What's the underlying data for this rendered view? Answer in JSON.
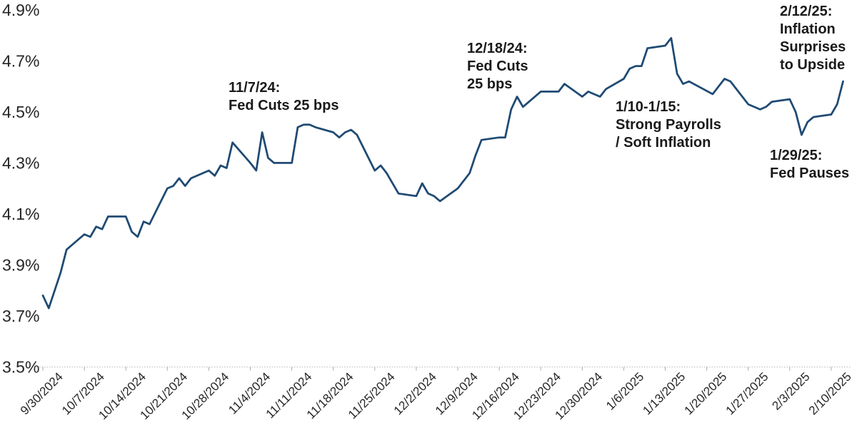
{
  "chart_data": {
    "type": "line",
    "title": "",
    "background": "#ffffff",
    "line_color": "#1f4a73",
    "axis_color": "#cccccc",
    "tick_color": "#aaaaaa",
    "text_color": "#262626",
    "annotation_color": "#1a1a1a",
    "grid": false,
    "legend": false,
    "ylim": [
      3.5,
      4.9
    ],
    "y_ticks": [
      {
        "label": "4.9%",
        "value": 4.9
      },
      {
        "label": "4.7%",
        "value": 4.7
      },
      {
        "label": "4.5%",
        "value": 4.5
      },
      {
        "label": "4.3%",
        "value": 4.3
      },
      {
        "label": "4.1%",
        "value": 4.1
      },
      {
        "label": "3.9%",
        "value": 3.9
      },
      {
        "label": "3.7%",
        "value": 3.7
      },
      {
        "label": "3.5%",
        "value": 3.5
      }
    ],
    "x_range": [
      "9/30/2024",
      "2/12/2025"
    ],
    "x_ticks": [
      "9/30/2024",
      "10/7/2024",
      "10/14/2024",
      "10/21/2024",
      "10/28/2024",
      "11/4/2024",
      "11/11/2024",
      "11/18/2024",
      "11/25/2024",
      "12/2/2024",
      "12/9/2024",
      "12/16/2024",
      "12/23/2024",
      "12/30/2024",
      "1/6/2025",
      "1/13/2025",
      "1/20/2025",
      "1/27/2025",
      "2/3/2025",
      "2/10/2025"
    ],
    "dates": [
      "9/30/2024",
      "10/1/2024",
      "10/2/2024",
      "10/3/2024",
      "10/4/2024",
      "10/7/2024",
      "10/8/2024",
      "10/9/2024",
      "10/10/2024",
      "10/11/2024",
      "10/14/2024",
      "10/15/2024",
      "10/16/2024",
      "10/17/2024",
      "10/18/2024",
      "10/21/2024",
      "10/22/2024",
      "10/23/2024",
      "10/24/2024",
      "10/25/2024",
      "10/28/2024",
      "10/29/2024",
      "10/30/2024",
      "10/31/2024",
      "11/1/2024",
      "11/4/2024",
      "11/5/2024",
      "11/6/2024",
      "11/7/2024",
      "11/8/2024",
      "11/11/2024",
      "11/12/2024",
      "11/13/2024",
      "11/14/2024",
      "11/15/2024",
      "11/18/2024",
      "11/19/2024",
      "11/20/2024",
      "11/21/2024",
      "11/22/2024",
      "11/25/2024",
      "11/26/2024",
      "11/27/2024",
      "11/29/2024",
      "12/2/2024",
      "12/3/2024",
      "12/4/2024",
      "12/5/2024",
      "12/6/2024",
      "12/9/2024",
      "12/10/2024",
      "12/11/2024",
      "12/12/2024",
      "12/13/2024",
      "12/16/2024",
      "12/17/2024",
      "12/18/2024",
      "12/19/2024",
      "12/20/2024",
      "12/23/2024",
      "12/24/2024",
      "12/26/2024",
      "12/27/2024",
      "12/30/2024",
      "12/31/2024",
      "1/2/2025",
      "1/3/2025",
      "1/6/2025",
      "1/7/2025",
      "1/8/2025",
      "1/9/2025",
      "1/10/2025",
      "1/13/2025",
      "1/14/2025",
      "1/15/2025",
      "1/16/2025",
      "1/17/2025",
      "1/21/2025",
      "1/22/2025",
      "1/23/2025",
      "1/24/2025",
      "1/27/2025",
      "1/28/2025",
      "1/29/2025",
      "1/30/2025",
      "1/31/2025",
      "2/3/2025",
      "2/4/2025",
      "2/5/2025",
      "2/6/2025",
      "2/7/2025",
      "2/10/2025",
      "2/11/2025",
      "2/12/2025"
    ],
    "values": [
      3.78,
      3.73,
      3.8,
      3.87,
      3.96,
      4.02,
      4.01,
      4.05,
      4.04,
      4.09,
      4.09,
      4.03,
      4.01,
      4.07,
      4.06,
      4.2,
      4.21,
      4.24,
      4.21,
      4.24,
      4.27,
      4.25,
      4.29,
      4.28,
      4.38,
      4.3,
      4.27,
      4.42,
      4.32,
      4.3,
      4.3,
      4.44,
      4.45,
      4.45,
      4.44,
      4.42,
      4.4,
      4.42,
      4.43,
      4.41,
      4.27,
      4.29,
      4.26,
      4.18,
      4.17,
      4.22,
      4.18,
      4.17,
      4.15,
      4.2,
      4.23,
      4.26,
      4.33,
      4.39,
      4.4,
      4.4,
      4.51,
      4.56,
      4.52,
      4.58,
      4.58,
      4.58,
      4.61,
      4.56,
      4.58,
      4.56,
      4.59,
      4.63,
      4.67,
      4.68,
      4.68,
      4.75,
      4.76,
      4.79,
      4.65,
      4.61,
      4.62,
      4.57,
      4.6,
      4.63,
      4.62,
      4.53,
      4.52,
      4.51,
      4.52,
      4.54,
      4.55,
      4.5,
      4.41,
      4.46,
      4.48,
      4.49,
      4.53,
      4.62
    ],
    "annotations": [
      {
        "text": "11/7/24:\nFed Cuts 25 bps"
      },
      {
        "text": "12/18/24:\nFed Cuts\n25 bps"
      },
      {
        "text": "1/10-1/15:\nStrong Payrolls\n/ Soft Inflation"
      },
      {
        "text": "1/29/25:\nFed Pauses"
      },
      {
        "text": "2/12/25:\nInflation\nSurprises\nto Upside"
      }
    ]
  }
}
